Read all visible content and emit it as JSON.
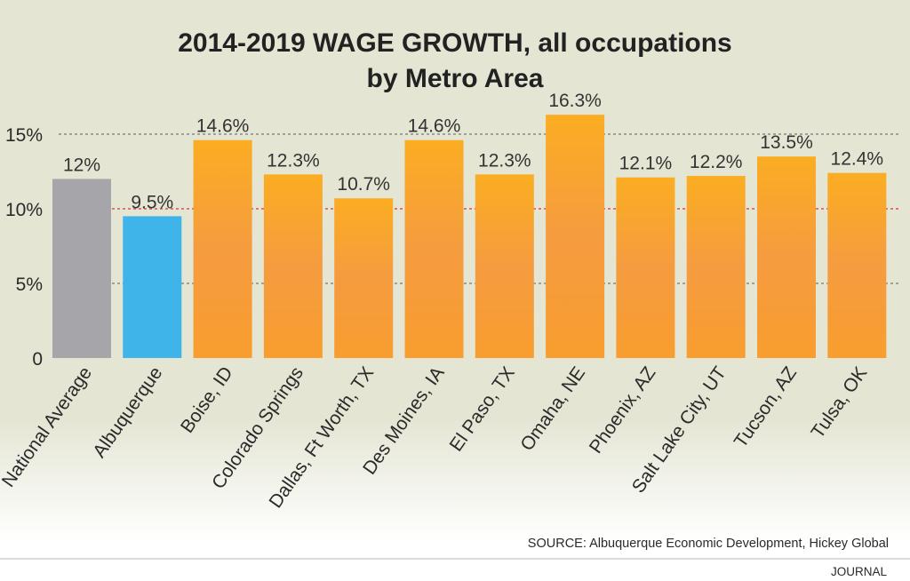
{
  "chart_data": {
    "type": "bar",
    "title_line1": "2014-2019 WAGE GROWTH, all occupations",
    "title_line2": "by Metro Area",
    "xlabel": "",
    "ylabel": "",
    "ylim": [
      0,
      16.3
    ],
    "yticks": [
      {
        "value": 0,
        "label": "0"
      },
      {
        "value": 5,
        "label": "5%"
      },
      {
        "value": 10,
        "label": "10%"
      },
      {
        "value": 15,
        "label": "15%"
      }
    ],
    "reference_line": {
      "value": 10,
      "color": "#d9534f"
    },
    "gridline_color": "#8a8a8a",
    "categories": [
      "National Average",
      "Albuquerque",
      "Boise, ID",
      "Colorado Springs",
      "Dallas, Ft Worth, TX",
      "Des Moines, IA",
      "El Paso, TX",
      "Omaha, NE",
      "Phoenix, AZ",
      "Salt Lake City, UT",
      "Tucson, AZ",
      "Tulsa, OK"
    ],
    "values": [
      12,
      9.5,
      14.6,
      12.3,
      10.7,
      14.6,
      12.3,
      16.3,
      12.1,
      12.2,
      13.5,
      12.4
    ],
    "data_labels": [
      "12%",
      "9.5%",
      "14.6%",
      "12.3%",
      "10.7%",
      "14.6%",
      "12.3%",
      "16.3%",
      "12.1%",
      "12.2%",
      "13.5%",
      "12.4%"
    ],
    "bar_colors": [
      "#a6a6aa",
      "#3eb4e8",
      "#f7a233",
      "#f7a233",
      "#f7a233",
      "#f7a233",
      "#f7a233",
      "#f7a233",
      "#f7a233",
      "#f7a233",
      "#f7a233",
      "#f7a233"
    ],
    "grid": true,
    "legend": "none",
    "source": "SOURCE: Albuquerque Economic Development, Hickey Global",
    "credit": "JOURNAL"
  }
}
